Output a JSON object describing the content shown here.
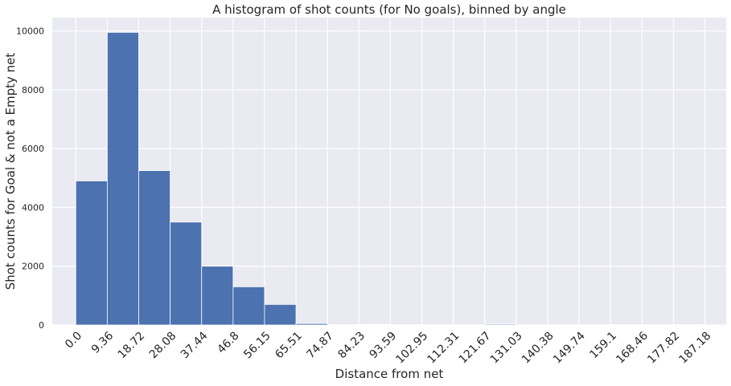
{
  "chart_data": {
    "type": "bar",
    "title": "A histogram of shot counts (for No goals), binned by angle",
    "xlabel": "Distance from net",
    "ylabel": "Shot counts for Goal & not a Empty net",
    "bin_edges": [
      0.0,
      9.36,
      18.72,
      28.08,
      37.44,
      46.8,
      56.15,
      65.51,
      74.87,
      84.23,
      93.59,
      102.95,
      112.31,
      121.67,
      131.03,
      140.38,
      149.74,
      159.1,
      168.46,
      177.82,
      187.18
    ],
    "tick_labels": [
      "0.0",
      "9.36",
      "18.72",
      "28.08",
      "37.44",
      "46.8",
      "56.15",
      "65.51",
      "74.87",
      "84.23",
      "93.59",
      "102.95",
      "112.31",
      "121.67",
      "131.03",
      "140.38",
      "149.74",
      "159.1",
      "168.46",
      "177.82",
      "187.18"
    ],
    "values": [
      4900,
      9950,
      5250,
      3500,
      2000,
      1300,
      700,
      50,
      10,
      20,
      10,
      5,
      5,
      30,
      5,
      5,
      5,
      15,
      5,
      15
    ],
    "yticks": [
      0,
      2000,
      4000,
      6000,
      8000,
      10000
    ],
    "ytick_labels": [
      "0",
      "2000",
      "4000",
      "6000",
      "8000",
      "10000"
    ],
    "ylim": [
      0,
      10450
    ],
    "xlim": [
      -7.0,
      193.5
    ],
    "grid": true,
    "colors": {
      "bar": "#4c72b0",
      "background": "#eaeaf2",
      "grid": "#ffffff"
    }
  }
}
